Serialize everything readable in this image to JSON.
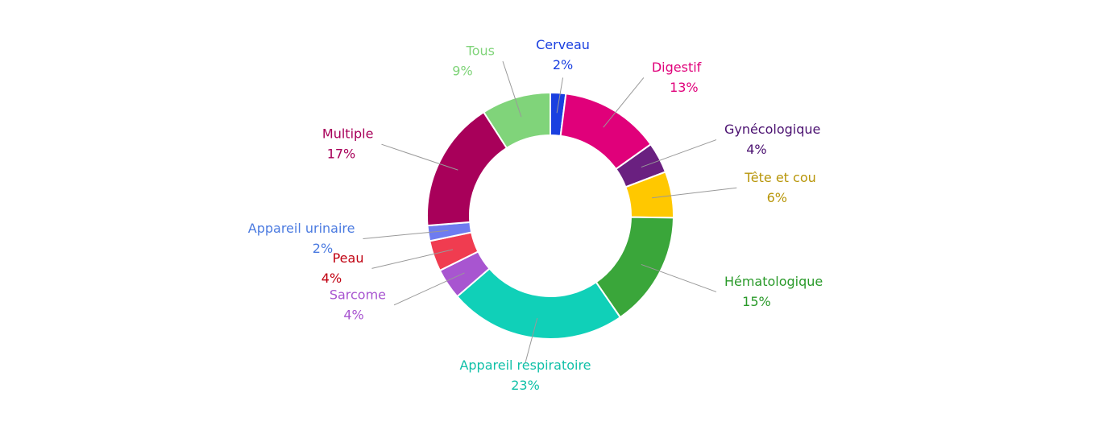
{
  "chart_data": {
    "type": "donut",
    "categories": [
      "Cerveau",
      "Digestif",
      "Gynécologique",
      "Tête et cou",
      "Hématologique",
      "Appareil respiratoire",
      "Sarcome",
      "Peau",
      "Appareil urinaire",
      "Multiple",
      "Tous"
    ],
    "values": [
      2,
      13,
      4,
      6,
      15,
      23,
      4,
      4,
      2,
      17,
      9
    ],
    "value_labels": [
      "2%",
      "13%",
      "4%",
      "6%",
      "15%",
      "23%",
      "4%",
      "4%",
      "2%",
      "17%",
      "9%"
    ],
    "colors": [
      "#1a3fe0",
      "#e0007a",
      "#6a2080",
      "#ffc800",
      "#3aa63a",
      "#10d0b8",
      "#a855d0",
      "#f03c50",
      "#6e7cf0",
      "#a8005a",
      "#80d47a"
    ],
    "label_colors": [
      "#1a3fe0",
      "#e0007a",
      "#4a1070",
      "#b8960a",
      "#2a9a2a",
      "#10c0a8",
      "#a855d0",
      "#c00010",
      "#4a7ae0",
      "#a8005a",
      "#80d47a"
    ]
  }
}
